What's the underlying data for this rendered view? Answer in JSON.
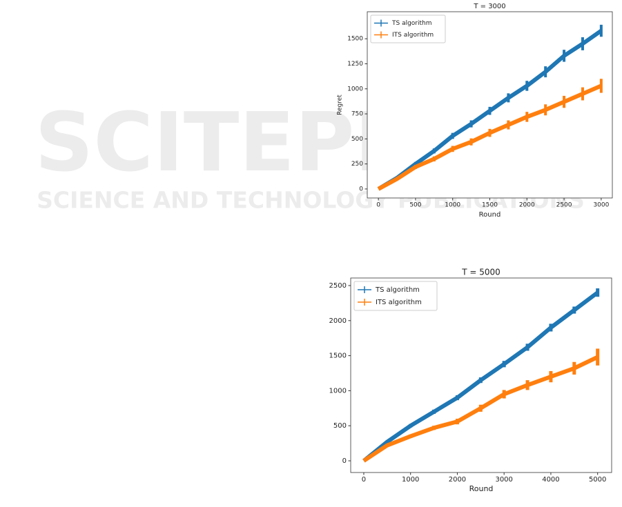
{
  "watermark": {
    "title": "SCITEPRESS",
    "subtitle": "SCIENCE AND TECHNOLOGY PUBLICATIONS"
  },
  "chart_data": [
    {
      "type": "line",
      "title": "T = 3000",
      "xlabel": "Round",
      "ylabel": "Regret",
      "x": [
        0,
        250,
        500,
        750,
        1000,
        1250,
        1500,
        1750,
        2000,
        2250,
        2500,
        2750,
        3000
      ],
      "series": [
        {
          "name": "TS algorithm",
          "color": "#1f77b4",
          "values": [
            0,
            110,
            250,
            380,
            530,
            650,
            780,
            910,
            1030,
            1170,
            1330,
            1450,
            1580
          ],
          "errors": [
            0,
            10,
            20,
            25,
            30,
            35,
            40,
            45,
            50,
            55,
            60,
            65,
            60
          ]
        },
        {
          "name": "ITS algorithm",
          "color": "#ff7f0e",
          "values": [
            0,
            100,
            220,
            300,
            400,
            470,
            560,
            640,
            720,
            790,
            870,
            950,
            1030
          ],
          "errors": [
            0,
            10,
            20,
            25,
            30,
            35,
            40,
            45,
            50,
            55,
            60,
            65,
            70
          ]
        }
      ],
      "xlim": [
        -150,
        3150
      ],
      "ylim": [
        -90,
        1770
      ],
      "xticks": [
        0,
        500,
        1000,
        1500,
        2000,
        2500,
        3000
      ],
      "yticks": [
        0,
        250,
        500,
        750,
        1000,
        1250,
        1500
      ],
      "legend": "upper left"
    },
    {
      "type": "line",
      "title": "T = 5000",
      "xlabel": "Round",
      "x": [
        0,
        500,
        1000,
        1500,
        2000,
        2500,
        3000,
        3500,
        4000,
        4500,
        5000
      ],
      "series": [
        {
          "name": "TS algorithm",
          "color": "#1f77b4",
          "values": [
            0,
            270,
            500,
            700,
            900,
            1150,
            1380,
            1620,
            1900,
            2150,
            2400
          ],
          "errors": [
            0,
            20,
            25,
            30,
            35,
            40,
            45,
            50,
            55,
            50,
            60
          ]
        },
        {
          "name": "ITS algorithm",
          "color": "#ff7f0e",
          "values": [
            0,
            220,
            350,
            470,
            560,
            750,
            950,
            1080,
            1200,
            1320,
            1480
          ],
          "errors": [
            0,
            20,
            25,
            30,
            40,
            50,
            60,
            70,
            80,
            90,
            120
          ]
        }
      ],
      "xlim": [
        -280,
        5300
      ],
      "ylim": [
        -167,
        2608
      ],
      "xticks": [
        0,
        1000,
        2000,
        3000,
        4000,
        5000
      ],
      "yticks": [
        0,
        500,
        1000,
        1500,
        2000,
        2500
      ],
      "legend": "upper left"
    }
  ]
}
